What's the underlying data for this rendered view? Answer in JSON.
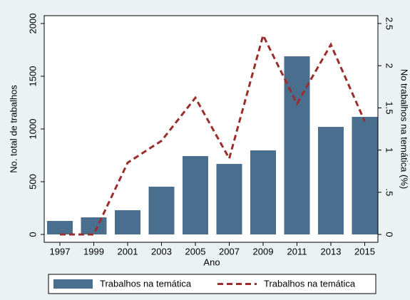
{
  "chart_data": {
    "type": "bar-line",
    "categories": [
      "1997",
      "1999",
      "2001",
      "2003",
      "2005",
      "2007",
      "2009",
      "2011",
      "2013",
      "2015"
    ],
    "series": [
      {
        "name": "Trabalhos na temática",
        "type": "bar",
        "color": "#4a6e8e",
        "values": [
          128,
          162,
          230,
          453,
          743,
          669,
          797,
          1689,
          1020,
          1115
        ]
      },
      {
        "name": "Trabalhos na temática",
        "type": "line",
        "axis": "y2",
        "color": "#9b2d2d",
        "dashed": true,
        "values": [
          0,
          0,
          0.85,
          1.11,
          1.62,
          0.9,
          2.36,
          1.55,
          2.25,
          1.34
        ]
      }
    ],
    "ylabel": "No. total de trabalhos",
    "y2label": "No trabalhos na temática (%)",
    "xlabel": "Ano",
    "ylim": [
      0,
      2000
    ],
    "yticks": [
      0,
      500,
      1000,
      1500,
      2000
    ],
    "y2lim": [
      0,
      2.5
    ],
    "y2ticks": [
      0,
      {
        "value": 0.5,
        "label": ".5"
      },
      1,
      1.5,
      2,
      2.5
    ],
    "grid": false,
    "legend": "bottom"
  }
}
